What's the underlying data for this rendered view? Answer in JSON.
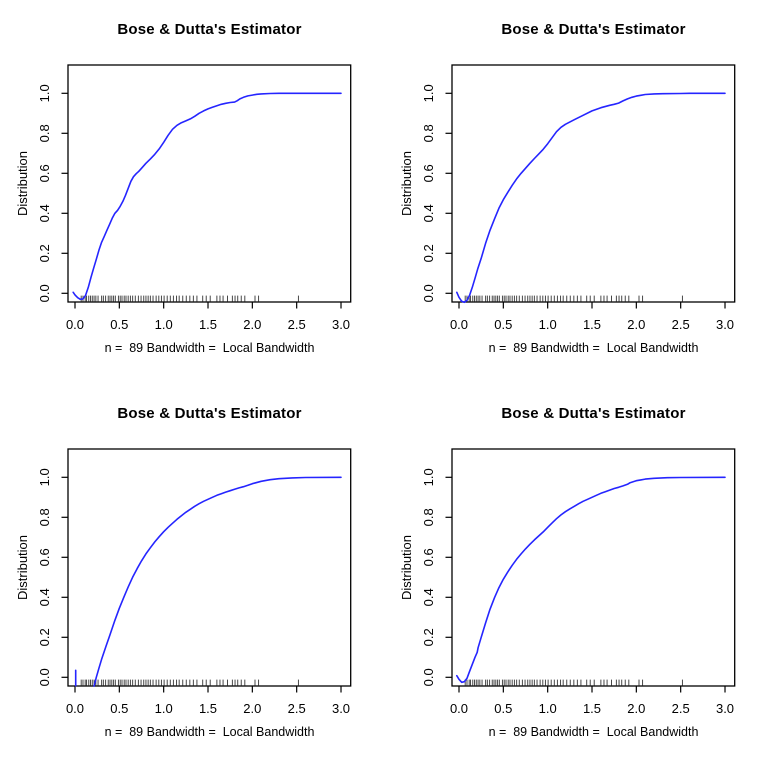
{
  "figure": {
    "background": "#ffffff"
  },
  "colors": {
    "curve": "#2525ff",
    "axis": "#000000",
    "text": "#000000",
    "rug": "#1a1a1a"
  },
  "axes": {
    "xlim": [
      0,
      3
    ],
    "ylim": [
      0,
      1
    ],
    "xticks": {
      "values": [
        0,
        0.5,
        1,
        1.5,
        2,
        2.5,
        3
      ],
      "labels": [
        "0.0",
        "0.5",
        "1.0",
        "1.5",
        "2.0",
        "2.5",
        "3.0"
      ]
    },
    "yticks": {
      "values": [
        0,
        0.2,
        0.4,
        0.6,
        0.8,
        1
      ],
      "labels": [
        "0.0",
        "0.2",
        "0.4",
        "0.6",
        "0.8",
        "1.0"
      ]
    },
    "grid": false,
    "legend": "none"
  },
  "rug": [
    0.07,
    0.09,
    0.115,
    0.13,
    0.155,
    0.175,
    0.195,
    0.215,
    0.235,
    0.26,
    0.3,
    0.32,
    0.345,
    0.375,
    0.395,
    0.415,
    0.435,
    0.455,
    0.49,
    0.51,
    0.53,
    0.555,
    0.575,
    0.6,
    0.625,
    0.65,
    0.68,
    0.715,
    0.745,
    0.775,
    0.8,
    0.825,
    0.85,
    0.88,
    0.915,
    0.945,
    0.975,
    1.005,
    1.04,
    1.075,
    1.11,
    1.145,
    1.175,
    1.215,
    1.255,
    1.295,
    1.335,
    1.375,
    1.44,
    1.48,
    1.525,
    1.6,
    1.635,
    1.67,
    1.72,
    1.775,
    1.805,
    1.835,
    1.875,
    1.915,
    2.03,
    2.07,
    2.52
  ],
  "chart_data": [
    {
      "id": "top-left",
      "type": "line",
      "title": "Bose & Dutta's Estimator",
      "xlabel": "n =  89 Bandwidth =  Local Bandwidth",
      "ylabel": "Distribution",
      "series": [
        {
          "name": "bose-dutta-estimate",
          "points": [
            [
              -0.02,
              0.005
            ],
            [
              0.0,
              -0.008
            ],
            [
              0.03,
              -0.022
            ],
            [
              0.06,
              -0.03
            ],
            [
              0.09,
              -0.028
            ],
            [
              0.12,
              -0.01
            ],
            [
              0.15,
              0.03
            ],
            [
              0.18,
              0.08
            ],
            [
              0.21,
              0.125
            ],
            [
              0.24,
              0.17
            ],
            [
              0.27,
              0.215
            ],
            [
              0.3,
              0.255
            ],
            [
              0.33,
              0.285
            ],
            [
              0.36,
              0.315
            ],
            [
              0.39,
              0.345
            ],
            [
              0.42,
              0.375
            ],
            [
              0.45,
              0.4
            ],
            [
              0.48,
              0.415
            ],
            [
              0.51,
              0.435
            ],
            [
              0.54,
              0.46
            ],
            [
              0.57,
              0.49
            ],
            [
              0.6,
              0.525
            ],
            [
              0.63,
              0.56
            ],
            [
              0.66,
              0.583
            ],
            [
              0.69,
              0.598
            ],
            [
              0.72,
              0.61
            ],
            [
              0.75,
              0.625
            ],
            [
              0.8,
              0.65
            ],
            [
              0.85,
              0.672
            ],
            [
              0.9,
              0.695
            ],
            [
              0.95,
              0.722
            ],
            [
              1.0,
              0.755
            ],
            [
              1.05,
              0.79
            ],
            [
              1.1,
              0.82
            ],
            [
              1.15,
              0.84
            ],
            [
              1.2,
              0.853
            ],
            [
              1.25,
              0.862
            ],
            [
              1.3,
              0.872
            ],
            [
              1.35,
              0.885
            ],
            [
              1.4,
              0.9
            ],
            [
              1.45,
              0.912
            ],
            [
              1.5,
              0.922
            ],
            [
              1.55,
              0.93
            ],
            [
              1.6,
              0.938
            ],
            [
              1.65,
              0.945
            ],
            [
              1.7,
              0.95
            ],
            [
              1.75,
              0.954
            ],
            [
              1.8,
              0.956
            ],
            [
              1.83,
              0.963
            ],
            [
              1.86,
              0.972
            ],
            [
              1.9,
              0.98
            ],
            [
              1.95,
              0.987
            ],
            [
              2.0,
              0.991
            ],
            [
              2.05,
              0.995
            ],
            [
              2.1,
              0.997
            ],
            [
              2.2,
              0.999
            ],
            [
              2.3,
              1.0
            ],
            [
              3.0,
              1.0
            ]
          ]
        }
      ]
    },
    {
      "id": "top-right",
      "type": "line",
      "title": "Bose & Dutta's Estimator",
      "xlabel": "n =  89 Bandwidth =  Local Bandwidth",
      "ylabel": "Distribution",
      "series": [
        {
          "name": "bose-dutta-estimate",
          "points": [
            [
              -0.025,
              0.005
            ],
            [
              0.0,
              -0.02
            ],
            [
              0.03,
              -0.04
            ],
            [
              0.06,
              -0.045
            ],
            [
              0.09,
              -0.035
            ],
            [
              0.12,
              -0.01
            ],
            [
              0.15,
              0.03
            ],
            [
              0.18,
              0.075
            ],
            [
              0.21,
              0.12
            ],
            [
              0.25,
              0.175
            ],
            [
              0.3,
              0.25
            ],
            [
              0.35,
              0.315
            ],
            [
              0.4,
              0.372
            ],
            [
              0.45,
              0.425
            ],
            [
              0.5,
              0.468
            ],
            [
              0.55,
              0.505
            ],
            [
              0.6,
              0.54
            ],
            [
              0.65,
              0.572
            ],
            [
              0.7,
              0.6
            ],
            [
              0.75,
              0.625
            ],
            [
              0.8,
              0.65
            ],
            [
              0.85,
              0.674
            ],
            [
              0.9,
              0.697
            ],
            [
              0.95,
              0.72
            ],
            [
              1.0,
              0.748
            ],
            [
              1.05,
              0.778
            ],
            [
              1.1,
              0.808
            ],
            [
              1.15,
              0.83
            ],
            [
              1.2,
              0.845
            ],
            [
              1.3,
              0.868
            ],
            [
              1.4,
              0.89
            ],
            [
              1.5,
              0.912
            ],
            [
              1.6,
              0.928
            ],
            [
              1.7,
              0.94
            ],
            [
              1.75,
              0.945
            ],
            [
              1.8,
              0.951
            ],
            [
              1.85,
              0.962
            ],
            [
              1.9,
              0.972
            ],
            [
              1.95,
              0.98
            ],
            [
              2.0,
              0.986
            ],
            [
              2.05,
              0.99
            ],
            [
              2.1,
              0.994
            ],
            [
              2.2,
              0.997
            ],
            [
              2.3,
              0.998
            ],
            [
              2.5,
              0.999
            ],
            [
              2.6,
              1.0
            ],
            [
              3.0,
              1.0
            ]
          ]
        }
      ]
    },
    {
      "id": "bottom-left",
      "type": "line",
      "title": "Bose & Dutta's Estimator",
      "xlabel": "n =  89 Bandwidth =  Local Bandwidth",
      "ylabel": "Distribution",
      "series": [
        {
          "name": "zero-spike",
          "points": [
            [
              0.008,
              0.035
            ],
            [
              0.008,
              -0.042
            ]
          ]
        },
        {
          "name": "bose-dutta-estimate",
          "points": [
            [
              0.215,
              -0.044
            ],
            [
              0.24,
              0.0
            ],
            [
              0.27,
              0.045
            ],
            [
              0.3,
              0.09
            ],
            [
              0.35,
              0.155
            ],
            [
              0.4,
              0.22
            ],
            [
              0.45,
              0.285
            ],
            [
              0.5,
              0.345
            ],
            [
              0.55,
              0.4
            ],
            [
              0.6,
              0.452
            ],
            [
              0.65,
              0.5
            ],
            [
              0.7,
              0.543
            ],
            [
              0.75,
              0.582
            ],
            [
              0.8,
              0.617
            ],
            [
              0.85,
              0.648
            ],
            [
              0.9,
              0.677
            ],
            [
              0.95,
              0.703
            ],
            [
              1.0,
              0.728
            ],
            [
              1.05,
              0.75
            ],
            [
              1.1,
              0.77
            ],
            [
              1.15,
              0.79
            ],
            [
              1.2,
              0.808
            ],
            [
              1.25,
              0.825
            ],
            [
              1.3,
              0.84
            ],
            [
              1.35,
              0.855
            ],
            [
              1.4,
              0.868
            ],
            [
              1.45,
              0.88
            ],
            [
              1.5,
              0.89
            ],
            [
              1.55,
              0.9
            ],
            [
              1.6,
              0.91
            ],
            [
              1.65,
              0.918
            ],
            [
              1.7,
              0.926
            ],
            [
              1.75,
              0.933
            ],
            [
              1.8,
              0.94
            ],
            [
              1.85,
              0.947
            ],
            [
              1.9,
              0.953
            ],
            [
              1.95,
              0.96
            ],
            [
              2.0,
              0.968
            ],
            [
              2.1,
              0.98
            ],
            [
              2.2,
              0.988
            ],
            [
              2.3,
              0.993
            ],
            [
              2.45,
              0.997
            ],
            [
              2.6,
              0.999
            ],
            [
              3.0,
              1.0
            ]
          ]
        }
      ]
    },
    {
      "id": "bottom-right",
      "type": "line",
      "title": "Bose & Dutta's Estimator",
      "xlabel": "n =  89 Bandwidth =  Local Bandwidth",
      "ylabel": "Distribution",
      "series": [
        {
          "name": "bose-dutta-estimate",
          "points": [
            [
              -0.025,
              0.008
            ],
            [
              0.0,
              -0.01
            ],
            [
              0.03,
              -0.025
            ],
            [
              0.06,
              -0.022
            ],
            [
              0.09,
              -0.005
            ],
            [
              0.12,
              0.03
            ],
            [
              0.15,
              0.065
            ],
            [
              0.18,
              0.1
            ],
            [
              0.205,
              0.125
            ],
            [
              0.215,
              0.148
            ],
            [
              0.25,
              0.2
            ],
            [
              0.3,
              0.272
            ],
            [
              0.35,
              0.34
            ],
            [
              0.4,
              0.398
            ],
            [
              0.45,
              0.448
            ],
            [
              0.5,
              0.49
            ],
            [
              0.55,
              0.527
            ],
            [
              0.6,
              0.56
            ],
            [
              0.65,
              0.59
            ],
            [
              0.7,
              0.617
            ],
            [
              0.75,
              0.642
            ],
            [
              0.8,
              0.665
            ],
            [
              0.85,
              0.687
            ],
            [
              0.9,
              0.707
            ],
            [
              0.95,
              0.727
            ],
            [
              1.0,
              0.75
            ],
            [
              1.05,
              0.772
            ],
            [
              1.1,
              0.793
            ],
            [
              1.15,
              0.812
            ],
            [
              1.2,
              0.828
            ],
            [
              1.25,
              0.842
            ],
            [
              1.3,
              0.855
            ],
            [
              1.35,
              0.868
            ],
            [
              1.4,
              0.88
            ],
            [
              1.45,
              0.89
            ],
            [
              1.5,
              0.9
            ],
            [
              1.55,
              0.91
            ],
            [
              1.6,
              0.92
            ],
            [
              1.65,
              0.928
            ],
            [
              1.7,
              0.936
            ],
            [
              1.75,
              0.944
            ],
            [
              1.8,
              0.95
            ],
            [
              1.85,
              0.957
            ],
            [
              1.9,
              0.965
            ],
            [
              1.93,
              0.973
            ],
            [
              2.0,
              0.983
            ],
            [
              2.05,
              0.987
            ],
            [
              2.1,
              0.991
            ],
            [
              2.2,
              0.995
            ],
            [
              2.35,
              0.998
            ],
            [
              2.5,
              0.999
            ],
            [
              3.0,
              1.0
            ]
          ]
        }
      ]
    }
  ]
}
